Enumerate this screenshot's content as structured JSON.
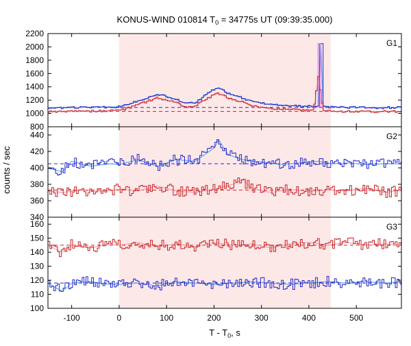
{
  "chart_data": {
    "type": "line",
    "title": "KONUS-WIND 010814 T0 = 34775s UT (09:39:35.000)",
    "title_parts": {
      "prefix": "KONUS-WIND 010814 T",
      "subscript": "0",
      "suffix": " = 34775s UT (09:39:35.000)"
    },
    "xlabel_parts": {
      "prefix": "T - T",
      "subscript": "0",
      "suffix": ", s"
    },
    "ylabel": "counts / sec",
    "x_range": [
      -150,
      595
    ],
    "x_ticks": [
      -100,
      0,
      100,
      200,
      300,
      400,
      500
    ],
    "highlight_interval": [
      0,
      446
    ],
    "colors": {
      "highlight": "#fde8e8",
      "blue": "#2323c8",
      "red": "#c81e1e",
      "light_blue": "#5aaae6",
      "pink": "#f0a0b4",
      "magenta": "#e678e6"
    },
    "panels": [
      {
        "label": "G1",
        "ylim": [
          800,
          2200
        ],
        "y_ticks": [
          800,
          1000,
          1200,
          1400,
          1600,
          1800,
          2000,
          2200
        ],
        "background": {
          "blue": 1090,
          "red": 1030
        },
        "series": [
          {
            "color": "blue",
            "points": [
              [
                -150,
                1090
              ],
              [
                -100,
                1085
              ],
              [
                -50,
                1095
              ],
              [
                0,
                1100
              ],
              [
                20,
                1130
              ],
              [
                40,
                1190
              ],
              [
                60,
                1230
              ],
              [
                80,
                1290
              ],
              [
                100,
                1260
              ],
              [
                120,
                1210
              ],
              [
                140,
                1150
              ],
              [
                160,
                1160
              ],
              [
                180,
                1260
              ],
              [
                200,
                1360
              ],
              [
                210,
                1390
              ],
              [
                230,
                1300
              ],
              [
                260,
                1230
              ],
              [
                290,
                1170
              ],
              [
                320,
                1130
              ],
              [
                350,
                1120
              ],
              [
                380,
                1110
              ],
              [
                420,
                1110
              ],
              [
                425,
                2050
              ],
              [
                430,
                1100
              ],
              [
                460,
                1095
              ],
              [
                500,
                1090
              ],
              [
                540,
                1085
              ],
              [
                595,
                1090
              ]
            ]
          },
          {
            "color": "red",
            "points": [
              [
                -150,
                1030
              ],
              [
                -100,
                1030
              ],
              [
                -50,
                1035
              ],
              [
                0,
                1045
              ],
              [
                20,
                1080
              ],
              [
                40,
                1140
              ],
              [
                60,
                1180
              ],
              [
                80,
                1230
              ],
              [
                100,
                1200
              ],
              [
                120,
                1160
              ],
              [
                140,
                1100
              ],
              [
                160,
                1110
              ],
              [
                180,
                1200
              ],
              [
                200,
                1280
              ],
              [
                210,
                1300
              ],
              [
                230,
                1230
              ],
              [
                260,
                1170
              ],
              [
                290,
                1100
              ],
              [
                320,
                1070
              ],
              [
                350,
                1060
              ],
              [
                380,
                1050
              ],
              [
                410,
                1040
              ],
              [
                420,
                1560
              ],
              [
                430,
                1040
              ],
              [
                460,
                1030
              ],
              [
                500,
                1030
              ],
              [
                540,
                1025
              ],
              [
                595,
                1030
              ]
            ]
          }
        ]
      },
      {
        "label": "G2",
        "ylim": [
          340,
          450
        ],
        "y_ticks": [
          340,
          360,
          380,
          400,
          420,
          440
        ],
        "background": {
          "blue": 405,
          "red": 373
        },
        "series": [
          {
            "color": "blue",
            "points": [
              [
                -150,
                400
              ],
              [
                -120,
                395
              ],
              [
                -100,
                408
              ],
              [
                -60,
                402
              ],
              [
                -20,
                405
              ],
              [
                0,
                404
              ],
              [
                40,
                410
              ],
              [
                80,
                402
              ],
              [
                120,
                410
              ],
              [
                160,
                408
              ],
              [
                180,
                416
              ],
              [
                200,
                424
              ],
              [
                210,
                434
              ],
              [
                230,
                416
              ],
              [
                260,
                410
              ],
              [
                300,
                407
              ],
              [
                340,
                404
              ],
              [
                380,
                406
              ],
              [
                420,
                408
              ],
              [
                450,
                405
              ],
              [
                480,
                406
              ],
              [
                520,
                404
              ],
              [
                560,
                405
              ],
              [
                595,
                405
              ]
            ]
          },
          {
            "color": "red",
            "points": [
              [
                -150,
                372
              ],
              [
                -120,
                370
              ],
              [
                -80,
                373
              ],
              [
                -40,
                371
              ],
              [
                0,
                374
              ],
              [
                40,
                372
              ],
              [
                80,
                378
              ],
              [
                120,
                372
              ],
              [
                160,
                370
              ],
              [
                200,
                374
              ],
              [
                240,
                380
              ],
              [
                260,
                386
              ],
              [
                280,
                375
              ],
              [
                320,
                370
              ],
              [
                360,
                374
              ],
              [
                400,
                371
              ],
              [
                440,
                373
              ],
              [
                480,
                372
              ],
              [
                520,
                375
              ],
              [
                560,
                370
              ],
              [
                595,
                373
              ]
            ]
          }
        ]
      },
      {
        "label": "G3",
        "ylim": [
          100,
          165
        ],
        "y_ticks": [
          100,
          110,
          120,
          130,
          140,
          150,
          160
        ],
        "background": {
          "red": 145,
          "blue": 118
        },
        "series": [
          {
            "color": "red",
            "points": [
              [
                -150,
                145
              ],
              [
                -120,
                140
              ],
              [
                -100,
                145
              ],
              [
                -60,
                143
              ],
              [
                -20,
                146
              ],
              [
                0,
                145
              ],
              [
                40,
                147
              ],
              [
                80,
                144
              ],
              [
                120,
                146
              ],
              [
                160,
                144
              ],
              [
                200,
                147
              ],
              [
                240,
                145
              ],
              [
                280,
                146
              ],
              [
                320,
                143
              ],
              [
                360,
                146
              ],
              [
                400,
                147
              ],
              [
                440,
                145
              ],
              [
                480,
                147
              ],
              [
                520,
                145
              ],
              [
                560,
                146
              ],
              [
                595,
                145
              ]
            ]
          },
          {
            "color": "blue",
            "points": [
              [
                -150,
                118
              ],
              [
                -120,
                112
              ],
              [
                -100,
                118
              ],
              [
                -60,
                119
              ],
              [
                -20,
                117
              ],
              [
                0,
                117
              ],
              [
                40,
                118
              ],
              [
                80,
                116
              ],
              [
                120,
                119
              ],
              [
                160,
                118
              ],
              [
                200,
                117
              ],
              [
                240,
                118
              ],
              [
                280,
                119
              ],
              [
                320,
                118
              ],
              [
                360,
                117
              ],
              [
                400,
                118
              ],
              [
                440,
                119
              ],
              [
                480,
                118
              ],
              [
                520,
                119
              ],
              [
                560,
                118
              ],
              [
                595,
                119
              ]
            ]
          }
        ]
      }
    ]
  }
}
